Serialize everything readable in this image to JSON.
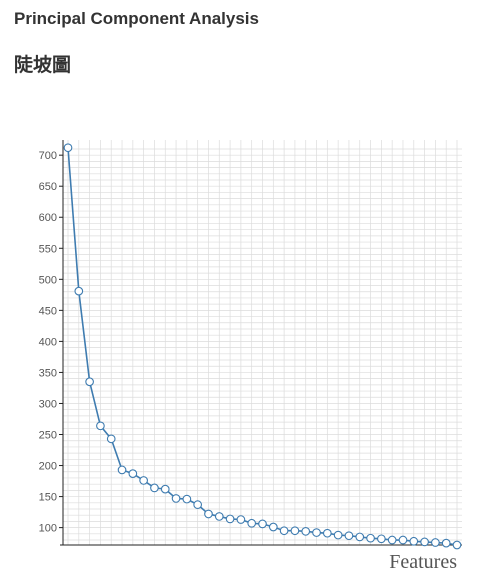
{
  "page": {
    "title": "Principal Component Analysis",
    "chart_title": "陡坡圖"
  },
  "colors": {
    "line": "#3f7cb0",
    "marker_fill": "#ffffff",
    "grid": "#dcdcdc",
    "axis": "#222222",
    "text": "#555555"
  },
  "chart_data": {
    "type": "line",
    "title": "陡坡圖",
    "xlabel": "Features",
    "ylabel": "",
    "xlim": [
      0,
      36
    ],
    "ylim": [
      72,
      718
    ],
    "yticks": [
      100,
      150,
      200,
      250,
      300,
      350,
      400,
      450,
      500,
      550,
      600,
      650,
      700
    ],
    "grid": true,
    "legend": "none",
    "markers": "open-circle",
    "x": [
      0,
      1,
      2,
      3,
      4,
      5,
      6,
      7,
      8,
      9,
      10,
      11,
      12,
      13,
      14,
      15,
      16,
      17,
      18,
      19,
      20,
      21,
      22,
      23,
      24,
      25,
      26,
      27,
      28,
      29,
      30,
      31,
      32,
      33,
      34,
      35,
      36
    ],
    "series": [
      {
        "values": [
          712,
          481,
          335,
          264,
          243,
          193,
          187,
          176,
          164,
          162,
          147,
          146,
          137,
          122,
          118,
          114,
          113,
          107,
          106,
          101,
          95,
          95,
          94,
          92,
          91,
          88,
          87,
          85,
          83,
          82,
          80,
          80,
          78,
          77,
          76,
          75,
          72
        ]
      }
    ]
  }
}
